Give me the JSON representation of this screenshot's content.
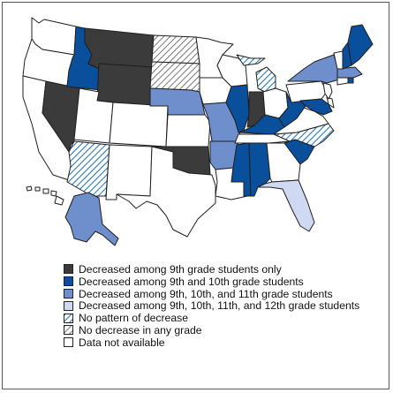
{
  "colors": {
    "dark": "#3b3b3b",
    "navy": "#0a4f9c",
    "medium": "#6f8fcc",
    "light": "#cfdaf2",
    "hatch_blue": "#1f6fb4",
    "hatch_gray": "#555555",
    "none": "#ffffff",
    "outline": "#1f1f1f"
  },
  "legend": {
    "items": [
      {
        "label": "Decreased among 9th grade students only",
        "category": "dark"
      },
      {
        "label": "Decreased among 9th and 10th grade students",
        "category": "navy"
      },
      {
        "label": "Decreased among 9th, 10th, and 11th grade students",
        "category": "medium"
      },
      {
        "label": "Decreased among 9th, 10th, 11th, and 12th grade students",
        "category": "light"
      },
      {
        "label": "No pattern of decrease",
        "category": "hatch_blue"
      },
      {
        "label": "No decrease in any grade",
        "category": "hatch_gray"
      },
      {
        "label": "Data not available",
        "category": "none"
      }
    ]
  },
  "states": {
    "WA": "none",
    "OR": "none",
    "CA": "none",
    "NV": "dark",
    "ID": "navy",
    "MT": "dark",
    "WY": "dark",
    "UT": "none",
    "CO": "none",
    "AZ": "hatch_blue",
    "NM": "none",
    "ND": "hatch_gray",
    "SD": "hatch_gray",
    "NE": "medium",
    "KS": "none",
    "OK": "dark",
    "TX": "none",
    "MN": "none",
    "IA": "none",
    "MO": "medium",
    "AR": "medium",
    "LA": "none",
    "WI": "none",
    "IL": "navy",
    "MS": "navy",
    "MI": "hatch_blue",
    "IN": "dark",
    "KY": "navy",
    "TN": "none",
    "AL": "navy",
    "OH": "none",
    "WV": "navy",
    "VA": "none",
    "NC": "hatch_blue",
    "SC": "navy",
    "GA": "none",
    "FL": "light",
    "PA": "none",
    "NY": "medium",
    "VT": "none",
    "NH": "navy",
    "ME": "navy",
    "MA": "medium",
    "RI": "navy",
    "CT": "none",
    "NJ": "none",
    "DE": "none",
    "MD": "navy",
    "AK": "medium",
    "HI": "none"
  }
}
